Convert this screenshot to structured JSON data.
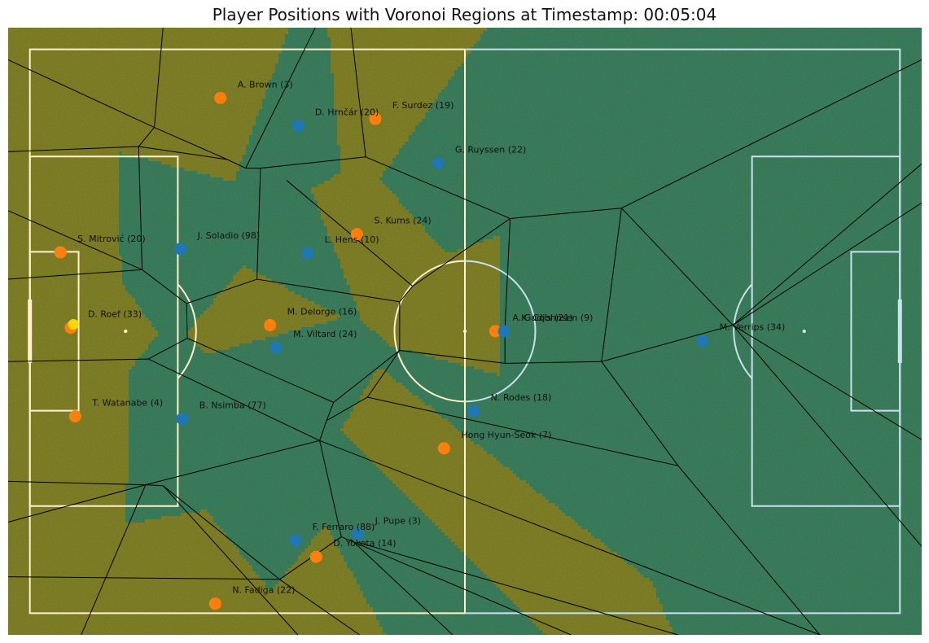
{
  "chart_data": {
    "type": "scatter",
    "title": "Player Positions with Voronoi Regions at Timestamp: 00:05:04",
    "xlabel": "",
    "ylabel": "",
    "xlim": [
      -2.5,
      102.5
    ],
    "ylim": [
      -2.5,
      67.5
    ],
    "grid": false,
    "legend": "none",
    "pitch": {
      "length": 100,
      "width": 65
    },
    "colors": {
      "team_a": "#ff7f0e",
      "team_b": "#1f77b4",
      "ball": "#ffd700",
      "region_a": "#8a8a2a",
      "region_b": "#3f8863",
      "grass": "#4f8f32",
      "lines_left": "#fff2cc",
      "lines_right": "#c8e2ef",
      "edges": "#000000"
    },
    "ball": {
      "x": 5.0,
      "y": 33.3
    },
    "series": [
      {
        "team": "a",
        "points": [
          {
            "x": 21.9,
            "y": 59.4,
            "label": "A. Brown (3)"
          },
          {
            "x": 39.7,
            "y": 57.0,
            "label": "F. Surdez (19)"
          },
          {
            "x": 37.6,
            "y": 43.7,
            "label": "S. Kums (24)"
          },
          {
            "x": 3.5,
            "y": 41.6,
            "label": "S. Mitrović (20)"
          },
          {
            "x": 4.7,
            "y": 32.9,
            "label": "D. Roef (33)"
          },
          {
            "x": 27.6,
            "y": 33.2,
            "label": "M. Delorge (16)"
          },
          {
            "x": 53.5,
            "y": 32.5,
            "label": "A. Gudjohnsen (9)"
          },
          {
            "x": 5.2,
            "y": 22.7,
            "label": "T. Watanabe (4)"
          },
          {
            "x": 47.6,
            "y": 19.0,
            "label": "Hong Hyun-Seok (7)"
          },
          {
            "x": 32.9,
            "y": 6.5,
            "label": "D. Yokota (14)"
          },
          {
            "x": 21.3,
            "y": 1.1,
            "label": "N. Fadiga (22)"
          }
        ]
      },
      {
        "team": "b",
        "points": [
          {
            "x": 30.8,
            "y": 56.2,
            "label": "D. Hrnčár (20)"
          },
          {
            "x": 46.9,
            "y": 51.9,
            "label": "G. Ruyssen (22)"
          },
          {
            "x": 17.3,
            "y": 42.0,
            "label": "J. Soladio (98)"
          },
          {
            "x": 31.9,
            "y": 41.5,
            "label": "L. Hens (10)"
          },
          {
            "x": 28.3,
            "y": 30.6,
            "label": "M. Viltard (24)"
          },
          {
            "x": 54.5,
            "y": 32.5,
            "label": "K. Cols (21)"
          },
          {
            "x": 77.3,
            "y": 31.4,
            "label": "M. Verrips (34)"
          },
          {
            "x": 51.0,
            "y": 23.3,
            "label": "N. Rodes (18)"
          },
          {
            "x": 17.5,
            "y": 22.4,
            "label": "B. Nsimba (77)"
          },
          {
            "x": 30.5,
            "y": 8.4,
            "label": "F. Ferraro (88)"
          },
          {
            "x": 37.7,
            "y": 9.1,
            "label": "J. Pupe (3)"
          }
        ]
      }
    ],
    "voronoi_edges": [
      [
        [
          12.5,
          53.8
        ],
        [
          22.7,
          52.3
        ]
      ],
      [
        [
          22.7,
          52.3
        ],
        [
          24.8,
          51.3
        ]
      ],
      [
        [
          24.8,
          51.3
        ],
        [
          26.5,
          51.3
        ]
      ],
      [
        [
          26.5,
          51.3
        ],
        [
          38.6,
          52.6
        ]
      ],
      [
        [
          38.6,
          52.6
        ],
        [
          36.9,
          67.5
        ]
      ],
      [
        [
          24.8,
          51.3
        ],
        [
          32.8,
          67.5
        ]
      ],
      [
        [
          22.7,
          52.3
        ],
        [
          14.3,
          56.0
        ]
      ],
      [
        [
          14.3,
          56.0
        ],
        [
          12.5,
          53.8
        ]
      ],
      [
        [
          12.5,
          53.8
        ],
        [
          -2.5,
          53.2
        ]
      ],
      [
        [
          14.3,
          56.0
        ],
        [
          -2.5,
          63.8
        ]
      ],
      [
        [
          14.3,
          56.0
        ],
        [
          15.3,
          67.5
        ]
      ],
      [
        [
          12.5,
          53.8
        ],
        [
          12.9,
          39.6
        ]
      ],
      [
        [
          12.9,
          39.6
        ],
        [
          18.0,
          35.7
        ]
      ],
      [
        [
          18.0,
          35.7
        ],
        [
          26.1,
          38.5
        ]
      ],
      [
        [
          26.1,
          38.5
        ],
        [
          26.5,
          51.3
        ]
      ],
      [
        [
          26.1,
          38.5
        ],
        [
          42.5,
          35.9
        ]
      ],
      [
        [
          42.5,
          35.9
        ],
        [
          44.0,
          37.7
        ]
      ],
      [
        [
          44.0,
          37.7
        ],
        [
          29.5,
          49.9
        ]
      ],
      [
        [
          12.9,
          39.6
        ],
        [
          -2.5,
          46.4
        ]
      ],
      [
        [
          12.9,
          39.6
        ],
        [
          -2.5,
          38.5
        ]
      ],
      [
        [
          18.0,
          35.7
        ],
        [
          18.1,
          31.7
        ]
      ],
      [
        [
          18.1,
          31.7
        ],
        [
          13.6,
          29.3
        ]
      ],
      [
        [
          13.6,
          29.3
        ],
        [
          -2.5,
          29.0
        ]
      ],
      [
        [
          18.1,
          31.7
        ],
        [
          34.9,
          24.3
        ]
      ],
      [
        [
          34.9,
          24.3
        ],
        [
          42.5,
          30.3
        ]
      ],
      [
        [
          42.5,
          30.3
        ],
        [
          42.5,
          35.9
        ]
      ],
      [
        [
          42.5,
          30.3
        ],
        [
          38.8,
          24.9
        ]
      ],
      [
        [
          38.8,
          24.9
        ],
        [
          34.1,
          22.2
        ]
      ],
      [
        [
          34.1,
          22.2
        ],
        [
          34.9,
          24.3
        ]
      ],
      [
        [
          44.0,
          37.7
        ],
        [
          55.2,
          45.5
        ]
      ],
      [
        [
          55.2,
          45.5
        ],
        [
          54.6,
          32.8
        ]
      ],
      [
        [
          54.6,
          32.8
        ],
        [
          54.6,
          28.8
        ]
      ],
      [
        [
          54.6,
          28.8
        ],
        [
          42.5,
          30.3
        ]
      ],
      [
        [
          55.2,
          45.5
        ],
        [
          68.0,
          46.7
        ]
      ],
      [
        [
          68.0,
          46.7
        ],
        [
          65.7,
          29.0
        ]
      ],
      [
        [
          65.7,
          29.0
        ],
        [
          54.6,
          28.8
        ]
      ],
      [
        [
          65.7,
          29.0
        ],
        [
          80.8,
          33.2
        ]
      ],
      [
        [
          80.8,
          33.2
        ],
        [
          68.0,
          46.7
        ]
      ],
      [
        [
          38.6,
          52.6
        ],
        [
          55.2,
          45.5
        ]
      ],
      [
        [
          68.0,
          46.7
        ],
        [
          102.5,
          63.8
        ]
      ],
      [
        [
          80.8,
          33.2
        ],
        [
          102.5,
          47.3
        ]
      ],
      [
        [
          80.8,
          33.2
        ],
        [
          102.5,
          51.8
        ]
      ],
      [
        [
          80.8,
          33.2
        ],
        [
          102.5,
          20.0
        ]
      ],
      [
        [
          80.8,
          33.2
        ],
        [
          102.5,
          7.7
        ]
      ],
      [
        [
          65.7,
          29.0
        ],
        [
          74.5,
          17.0
        ]
      ],
      [
        [
          74.5,
          17.0
        ],
        [
          38.8,
          24.9
        ]
      ],
      [
        [
          74.5,
          17.0
        ],
        [
          90.8,
          -2.5
        ]
      ],
      [
        [
          34.1,
          22.2
        ],
        [
          33.3,
          19.9
        ]
      ],
      [
        [
          33.3,
          19.9
        ],
        [
          13.6,
          29.3
        ]
      ],
      [
        [
          33.3,
          19.9
        ],
        [
          13.3,
          14.8
        ]
      ],
      [
        [
          13.3,
          14.8
        ],
        [
          -2.5,
          15.2
        ]
      ],
      [
        [
          13.3,
          14.8
        ],
        [
          -2.5,
          10.5
        ]
      ],
      [
        [
          13.3,
          14.8
        ],
        [
          15.3,
          14.7
        ]
      ],
      [
        [
          15.3,
          14.7
        ],
        [
          28.7,
          3.9
        ]
      ],
      [
        [
          28.7,
          3.9
        ],
        [
          35.8,
          8.8
        ]
      ],
      [
        [
          35.8,
          8.8
        ],
        [
          33.3,
          19.9
        ]
      ],
      [
        [
          33.3,
          19.9
        ],
        [
          90.8,
          -2.5
        ]
      ],
      [
        [
          35.8,
          8.8
        ],
        [
          62.2,
          -2.5
        ]
      ],
      [
        [
          37.6,
          8.2
        ],
        [
          74.5,
          -2.5
        ]
      ],
      [
        [
          36.9,
          8.5
        ],
        [
          48.6,
          -2.5
        ]
      ],
      [
        [
          28.7,
          3.9
        ],
        [
          -2.5,
          4.2
        ]
      ],
      [
        [
          15.3,
          14.7
        ],
        [
          30.8,
          -2.5
        ]
      ],
      [
        [
          28.7,
          3.9
        ],
        [
          37.9,
          -2.5
        ]
      ],
      [
        [
          13.3,
          14.8
        ],
        [
          5.9,
          -2.5
        ]
      ]
    ]
  }
}
